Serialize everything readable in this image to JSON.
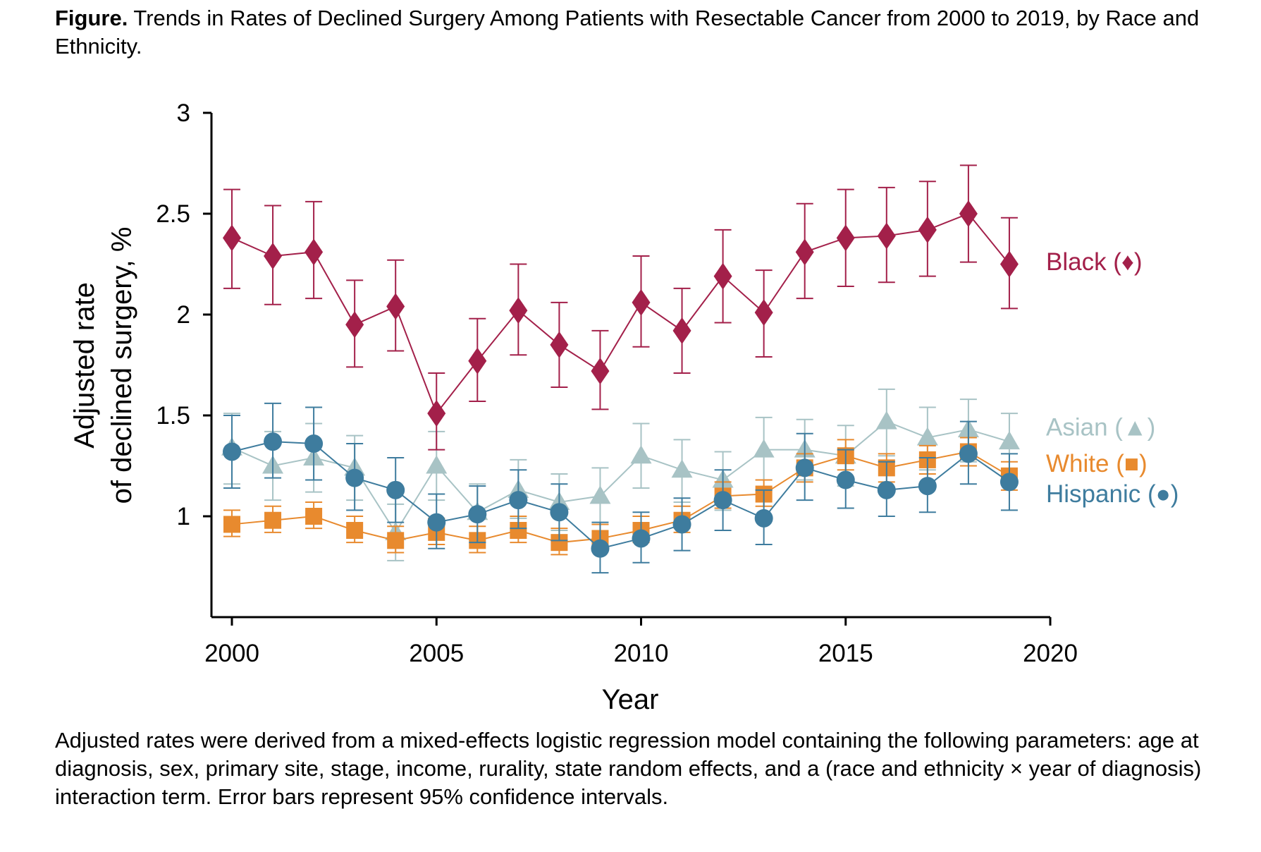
{
  "caption": {
    "label": "Figure.",
    "text": "Trends in Rates of Declined Surgery Among Patients with Resectable Cancer from 2000 to 2019, by Race and Ethnicity."
  },
  "footnote": "Adjusted rates were derived from a mixed-effects logistic regression model containing the following parameters: age at diagnosis, sex, primary site, stage, income, rurality, state random effects, and a (race and ethnicity × year of diagnosis) interaction term. Error bars represent 95% confidence intervals.",
  "chart_data": {
    "type": "line",
    "xlabel": "Year",
    "ylabel_lines": [
      "Adjusted rate",
      "of declined surgery, %"
    ],
    "xlim": [
      2000,
      2020
    ],
    "ylim": [
      0.5,
      3
    ],
    "xticks": [
      2000,
      2005,
      2010,
      2015,
      2020
    ],
    "yticks": [
      1,
      1.5,
      2,
      2.5,
      3
    ],
    "grid": false,
    "legend_placement": "right, inline series labels",
    "x": [
      2000,
      2001,
      2002,
      2003,
      2004,
      2005,
      2006,
      2007,
      2008,
      2009,
      2010,
      2011,
      2012,
      2013,
      2014,
      2015,
      2016,
      2017,
      2018,
      2019
    ],
    "series": [
      {
        "name": "Black (♦)",
        "color": "#a3204a",
        "marker": "diamond",
        "values": [
          2.38,
          2.29,
          2.31,
          1.95,
          2.04,
          1.51,
          1.77,
          2.02,
          1.85,
          1.72,
          2.06,
          1.92,
          2.19,
          2.01,
          2.31,
          2.38,
          2.39,
          2.42,
          2.5,
          2.25
        ],
        "ci_low": [
          2.13,
          2.05,
          2.08,
          1.74,
          1.82,
          1.33,
          1.57,
          1.8,
          1.64,
          1.53,
          1.84,
          1.71,
          1.96,
          1.79,
          2.08,
          2.14,
          2.16,
          2.19,
          2.26,
          2.03
        ],
        "ci_high": [
          2.62,
          2.54,
          2.56,
          2.17,
          2.27,
          1.71,
          1.98,
          2.25,
          2.06,
          1.92,
          2.29,
          2.13,
          2.42,
          2.22,
          2.55,
          2.62,
          2.63,
          2.66,
          2.74,
          2.48
        ]
      },
      {
        "name": "Asian (▲)",
        "color": "#a8c3c5",
        "marker": "triangle",
        "values": [
          1.34,
          1.25,
          1.29,
          1.24,
          0.92,
          1.25,
          1.02,
          1.13,
          1.07,
          1.1,
          1.3,
          1.23,
          1.18,
          1.33,
          1.33,
          1.3,
          1.47,
          1.39,
          1.43,
          1.37
        ],
        "ci_low": [
          1.16,
          1.08,
          1.12,
          1.08,
          0.78,
          1.08,
          0.88,
          0.99,
          0.93,
          0.96,
          1.14,
          1.07,
          1.03,
          1.18,
          1.18,
          1.15,
          1.3,
          1.23,
          1.27,
          1.21
        ],
        "ci_high": [
          1.51,
          1.42,
          1.46,
          1.4,
          1.06,
          1.42,
          1.16,
          1.28,
          1.21,
          1.24,
          1.46,
          1.38,
          1.32,
          1.49,
          1.48,
          1.45,
          1.63,
          1.54,
          1.58,
          1.51
        ]
      },
      {
        "name": "White (■)",
        "color": "#e88a2e",
        "marker": "square",
        "values": [
          0.96,
          0.98,
          1.0,
          0.93,
          0.88,
          0.92,
          0.88,
          0.93,
          0.87,
          0.89,
          0.93,
          0.98,
          1.1,
          1.11,
          1.24,
          1.3,
          1.24,
          1.28,
          1.32,
          1.2
        ],
        "ci_low": [
          0.9,
          0.92,
          0.94,
          0.87,
          0.82,
          0.86,
          0.82,
          0.87,
          0.81,
          0.83,
          0.87,
          0.92,
          1.04,
          1.05,
          1.17,
          1.23,
          1.17,
          1.21,
          1.25,
          1.13
        ],
        "ci_high": [
          1.03,
          1.05,
          1.07,
          1.0,
          0.95,
          0.99,
          0.95,
          1.0,
          0.94,
          0.96,
          1.0,
          1.05,
          1.17,
          1.18,
          1.31,
          1.38,
          1.31,
          1.35,
          1.39,
          1.27
        ]
      },
      {
        "name": "Hispanic (●)",
        "color": "#3e7c9e",
        "marker": "circle",
        "values": [
          1.32,
          1.37,
          1.36,
          1.19,
          1.13,
          0.97,
          1.01,
          1.08,
          1.02,
          0.84,
          0.89,
          0.96,
          1.08,
          0.99,
          1.24,
          1.18,
          1.13,
          1.15,
          1.31,
          1.17
        ],
        "ci_low": [
          1.14,
          1.19,
          1.18,
          1.03,
          0.97,
          0.84,
          0.87,
          0.94,
          0.88,
          0.72,
          0.77,
          0.83,
          0.93,
          0.86,
          1.08,
          1.04,
          1.0,
          1.02,
          1.16,
          1.03
        ],
        "ci_high": [
          1.5,
          1.56,
          1.54,
          1.36,
          1.29,
          1.11,
          1.15,
          1.23,
          1.16,
          0.97,
          1.02,
          1.09,
          1.23,
          1.13,
          1.41,
          1.33,
          1.27,
          1.29,
          1.47,
          1.31
        ]
      }
    ]
  }
}
